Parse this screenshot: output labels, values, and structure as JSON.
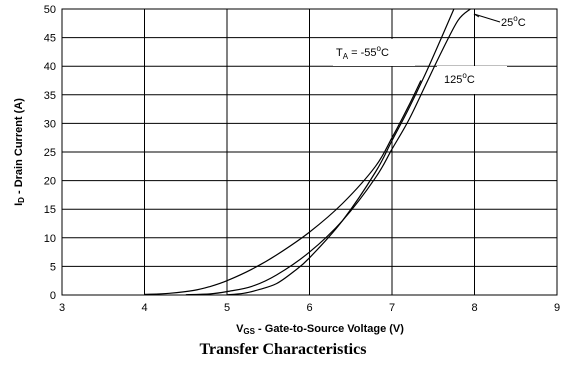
{
  "caption": "Transfer Characteristics",
  "chart_data": {
    "type": "line",
    "xlim": [
      3,
      9
    ],
    "ylim": [
      0,
      50
    ],
    "xticks": [
      "3",
      "4",
      "5",
      "6",
      "7",
      "8",
      "9"
    ],
    "yticks": [
      "0",
      "5",
      "10",
      "15",
      "20",
      "25",
      "30",
      "35",
      "40",
      "45",
      "50"
    ],
    "grid": true,
    "xlabel": {
      "main": "V",
      "sub": "GS",
      "rest": " - Gate-to-Source Voltage (V)"
    },
    "ylabel": {
      "main": "I",
      "sub": "D",
      "rest": " - Drain Current (A)"
    },
    "series": [
      {
        "label_main": "T",
        "label_sub": "A",
        "label_rest": " = -55",
        "label_sup": "o",
        "label_unit": "C",
        "x": [
          4.0,
          4.3,
          4.6,
          4.8,
          5.0,
          5.3,
          5.6,
          6.0,
          6.4,
          6.8,
          7.0,
          7.2,
          7.35
        ],
        "y": [
          0.1,
          0.3,
          0.8,
          1.5,
          2.5,
          4.5,
          7.0,
          11.0,
          16.0,
          22.5,
          27.5,
          33.0,
          37.5
        ]
      },
      {
        "label_main": "25",
        "label_sup": "o",
        "label_unit": "C",
        "x": [
          4.5,
          4.8,
          5.0,
          5.3,
          5.6,
          6.0,
          6.4,
          6.8,
          7.0,
          7.2,
          7.4,
          7.6,
          7.8,
          7.95
        ],
        "y": [
          0.05,
          0.2,
          0.6,
          1.5,
          3.5,
          7.5,
          13.0,
          20.5,
          25.5,
          30.5,
          36.5,
          42.5,
          48.0,
          51.0
        ]
      },
      {
        "label_main": "125",
        "label_sup": "o",
        "label_unit": "C",
        "x": [
          5.0,
          5.2,
          5.4,
          5.6,
          5.8,
          6.0,
          6.4,
          6.8,
          7.0,
          7.2,
          7.4,
          7.6,
          7.75
        ],
        "y": [
          0.05,
          0.3,
          1.0,
          2.0,
          4.0,
          6.5,
          13.0,
          21.5,
          27.0,
          32.5,
          38.5,
          45.0,
          50.5
        ]
      }
    ]
  }
}
